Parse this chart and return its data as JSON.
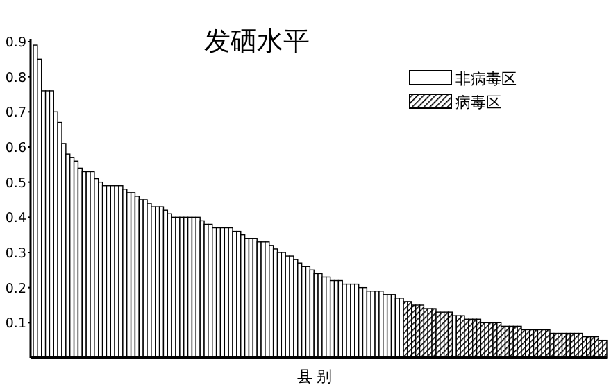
{
  "chart_data": {
    "type": "bar",
    "title": "发硒水平",
    "xlabel": "县 别",
    "categories": [
      null,
      null,
      null,
      null,
      null,
      null,
      null,
      null,
      null,
      null,
      null,
      null,
      null,
      null,
      null,
      null,
      null,
      null,
      null,
      null,
      null,
      null,
      null,
      null,
      null,
      null,
      null,
      null,
      null,
      null,
      null,
      null,
      null,
      null,
      null,
      null,
      null,
      null,
      null,
      null,
      null,
      null,
      null,
      null,
      null,
      null,
      null,
      null,
      null,
      null,
      null,
      null,
      null,
      null,
      null,
      null,
      null,
      null,
      null,
      null,
      null,
      null,
      null,
      null,
      null,
      null,
      null,
      null,
      null,
      null,
      null,
      null,
      null,
      null,
      null,
      null,
      null,
      null,
      null,
      null,
      null,
      null,
      null,
      null,
      null,
      null,
      null,
      null,
      null,
      null,
      null,
      null,
      null,
      null,
      null,
      null,
      null,
      null,
      null,
      null,
      null,
      null,
      null,
      null,
      null,
      null,
      null,
      null,
      null,
      null,
      null,
      null,
      null,
      null,
      null,
      null,
      null,
      null,
      null,
      null,
      null,
      null,
      null,
      null,
      null,
      null,
      null,
      null,
      null,
      null,
      null,
      null,
      null,
      null,
      null,
      null,
      null,
      null,
      null,
      null,
      null
    ],
    "series": [
      {
        "name": "非病毒区",
        "color": "#ffffff",
        "values": [
          0.89,
          0.85,
          0.76,
          0.76,
          0.76,
          0.7,
          0.67,
          0.61,
          0.58,
          0.57,
          0.56,
          0.54,
          0.53,
          0.53,
          0.53,
          0.51,
          0.5,
          0.49,
          0.49,
          0.49,
          0.49,
          0.49,
          0.48,
          0.47,
          0.47,
          0.46,
          0.45,
          0.45,
          0.44,
          0.43,
          0.43,
          0.43,
          0.42,
          0.41,
          0.4,
          0.4,
          0.4,
          0.4,
          0.4,
          0.4,
          0.4,
          0.39,
          0.38,
          0.38,
          0.37,
          0.37,
          0.37,
          0.37,
          0.37,
          0.36,
          0.36,
          0.35,
          0.34,
          0.34,
          0.34,
          0.33,
          0.33,
          0.33,
          0.32,
          0.31,
          0.3,
          0.3,
          0.29,
          0.29,
          0.28,
          0.27,
          0.26,
          0.26,
          0.25,
          0.24,
          0.24,
          0.23,
          0.23,
          0.22,
          0.22,
          0.22,
          0.21,
          0.21,
          0.21,
          0.21,
          0.2,
          0.2,
          0.19,
          0.19,
          0.19,
          0.19,
          0.18,
          0.18,
          0.18,
          0.17,
          0.17,
          null,
          null,
          null,
          null,
          null,
          null,
          null,
          null,
          null,
          null,
          null,
          null,
          0.12,
          null,
          null,
          null,
          null,
          null,
          null,
          null,
          null,
          null,
          null,
          null,
          null,
          null,
          null,
          null,
          null,
          null,
          null,
          null,
          null,
          null,
          null,
          null,
          null,
          null,
          null,
          null,
          null,
          null,
          null,
          null,
          null,
          null,
          null,
          null,
          null,
          null
        ]
      },
      {
        "name": "病毒区",
        "color": "#000000",
        "values": [
          null,
          null,
          null,
          null,
          null,
          null,
          null,
          null,
          null,
          null,
          null,
          null,
          null,
          null,
          null,
          null,
          null,
          null,
          null,
          null,
          null,
          null,
          null,
          null,
          null,
          null,
          null,
          null,
          null,
          null,
          null,
          null,
          null,
          null,
          null,
          null,
          null,
          null,
          null,
          null,
          null,
          null,
          null,
          null,
          null,
          null,
          null,
          null,
          null,
          null,
          null,
          null,
          null,
          null,
          null,
          null,
          null,
          null,
          null,
          null,
          null,
          null,
          null,
          null,
          null,
          null,
          null,
          null,
          null,
          null,
          null,
          null,
          null,
          null,
          null,
          null,
          null,
          null,
          null,
          null,
          null,
          null,
          null,
          null,
          null,
          null,
          null,
          null,
          null,
          null,
          null,
          0.16,
          0.16,
          0.15,
          0.15,
          0.15,
          0.14,
          0.14,
          0.14,
          0.13,
          0.13,
          0.13,
          0.13,
          null,
          0.12,
          0.12,
          0.11,
          0.11,
          0.11,
          0.11,
          0.1,
          0.1,
          0.1,
          0.1,
          0.1,
          0.09,
          0.09,
          0.09,
          0.09,
          0.09,
          0.08,
          0.08,
          0.08,
          0.08,
          0.08,
          0.08,
          0.08,
          0.07,
          0.07,
          0.07,
          0.07,
          0.07,
          0.07,
          0.07,
          0.07,
          0.06,
          0.06,
          0.06,
          0.06,
          0.05,
          0.05
        ]
      }
    ],
    "ylim": [
      0,
      0.9
    ],
    "yticks": [
      0.1,
      0.2,
      0.3,
      0.4,
      0.5,
      0.6,
      0.7,
      0.8,
      0.9
    ],
    "tick_labels": "y",
    "legend": "top right"
  }
}
